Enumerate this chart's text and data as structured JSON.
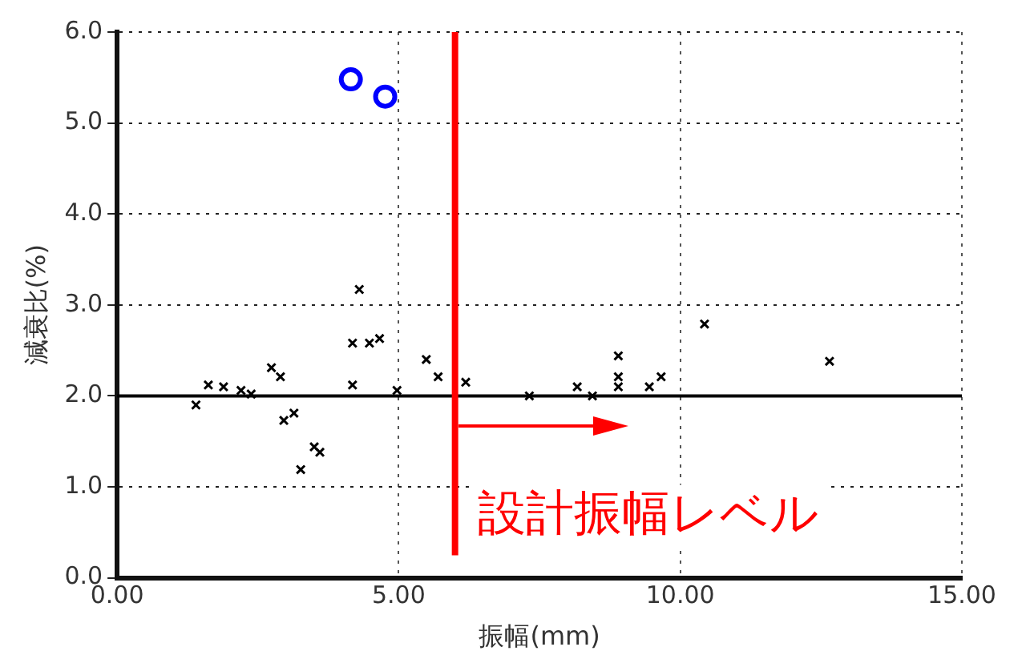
{
  "chart_data": {
    "type": "scatter",
    "xlabel": "振幅(mm)",
    "ylabel": "減衰比(%)",
    "xlim": [
      0,
      15
    ],
    "ylim": [
      0,
      6
    ],
    "xticks": [
      {
        "value": 0,
        "label": "0.00"
      },
      {
        "value": 5,
        "label": "5.00"
      },
      {
        "value": 10,
        "label": "10.00"
      },
      {
        "value": 15,
        "label": "15.00"
      }
    ],
    "yticks": [
      {
        "value": 0,
        "label": "0.0"
      },
      {
        "value": 1,
        "label": "1.0"
      },
      {
        "value": 2,
        "label": "2.0"
      },
      {
        "value": 3,
        "label": "3.0"
      },
      {
        "value": 4,
        "label": "4.0"
      },
      {
        "value": 5,
        "label": "5.0"
      },
      {
        "value": 6,
        "label": "6.0"
      }
    ],
    "grid": true,
    "legend": false,
    "series": [
      {
        "color": "#000000",
        "marker": "cross",
        "x": [
          4.3,
          4.18,
          4.48,
          4.66,
          5.49,
          2.74,
          2.9,
          1.62,
          1.89,
          2.2,
          2.38,
          1.4,
          4.18,
          4.97,
          2.96,
          3.14,
          3.5,
          3.6,
          3.26,
          10.43,
          12.65,
          8.9,
          8.9,
          8.9,
          9.66,
          9.45,
          8.17,
          8.44,
          7.32,
          6.19,
          5.7
        ],
        "values": [
          3.17,
          2.58,
          2.58,
          2.63,
          2.4,
          2.31,
          2.21,
          2.12,
          2.1,
          2.06,
          2.02,
          1.9,
          2.12,
          2.06,
          1.73,
          1.81,
          1.44,
          1.38,
          1.19,
          2.79,
          2.38,
          2.44,
          2.21,
          2.1,
          2.21,
          2.1,
          2.1,
          2.0,
          2.0,
          2.15,
          2.21
        ]
      },
      {
        "color": "#0000ff",
        "marker": "circle",
        "x": [
          4.15,
          4.76
        ],
        "values": [
          5.48,
          5.29
        ]
      }
    ],
    "ref_lines": [
      {
        "axis": "y",
        "value": 2.0,
        "color": "#000000",
        "line_style": "solid"
      },
      {
        "axis": "x",
        "value": 6.0,
        "label": "設計振幅レベル",
        "color": "#ff0000",
        "line_style": "solid"
      }
    ]
  }
}
